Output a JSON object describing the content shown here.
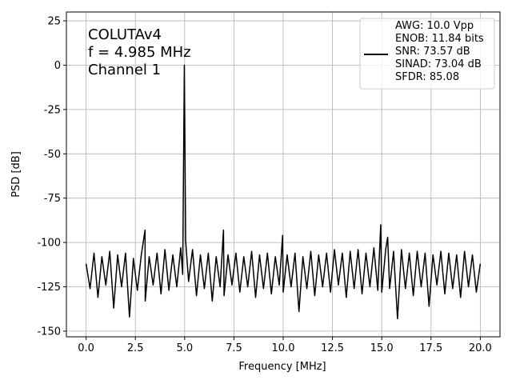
{
  "chart_data": {
    "type": "line",
    "xlabel": "Frequency [MHz]",
    "ylabel": "PSD [dB]",
    "annotations": [
      "COLUTAv4",
      "f = 4.985 MHz",
      "Channel 1"
    ],
    "xlim": [
      -1,
      21
    ],
    "ylim": [
      -153.2,
      30
    ],
    "xticks": [
      {
        "value": 0,
        "label": "0.0"
      },
      2.5,
      {
        "value": 5,
        "label": "5.0"
      },
      7.5,
      {
        "value": 10,
        "label": "10.0"
      },
      12.5,
      {
        "value": 15,
        "label": "15.0"
      },
      17.5,
      {
        "value": 20,
        "label": "20.0"
      }
    ],
    "yticks": [
      25,
      0,
      -25,
      -50,
      -75,
      -100,
      -125,
      -150
    ],
    "grid": true,
    "x": [
      0,
      0.2,
      0.4,
      0.6,
      0.8,
      1.0,
      1.2,
      1.4,
      1.6,
      1.8,
      2.0,
      2.2,
      2.4,
      2.6,
      2.8,
      2.99,
      3.0,
      3.2,
      3.4,
      3.6,
      3.8,
      4.0,
      4.2,
      4.4,
      4.6,
      4.8,
      4.9,
      4.985,
      5.05,
      5.2,
      5.4,
      5.6,
      5.8,
      6.0,
      6.2,
      6.4,
      6.6,
      6.8,
      6.97,
      7.0,
      7.2,
      7.4,
      7.6,
      7.8,
      8.0,
      8.2,
      8.4,
      8.6,
      8.8,
      9.0,
      9.2,
      9.4,
      9.6,
      9.8,
      9.97,
      10.0,
      10.2,
      10.4,
      10.6,
      10.8,
      11.0,
      11.2,
      11.4,
      11.6,
      11.8,
      12.0,
      12.2,
      12.4,
      12.6,
      12.8,
      13.0,
      13.2,
      13.4,
      13.6,
      13.8,
      14.0,
      14.2,
      14.4,
      14.6,
      14.8,
      14.95,
      15.0,
      15.2,
      15.3,
      15.4,
      15.6,
      15.8,
      16.0,
      16.2,
      16.4,
      16.6,
      16.8,
      17.0,
      17.2,
      17.4,
      17.6,
      17.8,
      18.0,
      18.2,
      18.4,
      18.6,
      18.8,
      19.0,
      19.2,
      19.4,
      19.6,
      19.8,
      20.0
    ],
    "series": [
      {
        "name": "AWG: 10.0 Vpp\nENOB: 11.84 bits\nSNR: 73.57 dB\nSINAD: 73.04 dB\nSFDR: 85.08",
        "color": "#000000",
        "values": [
          -112,
          -126,
          -106,
          -131,
          -108,
          -124,
          -105,
          -137,
          -107,
          -125,
          -106,
          -142,
          -109,
          -127,
          -107,
          -93,
          -133,
          -108,
          -124,
          -106,
          -129,
          -104,
          -127,
          -107,
          -125,
          -103,
          -118,
          0,
          -99,
          -122,
          -104,
          -130,
          -107,
          -126,
          -106,
          -133,
          -108,
          -125,
          -93,
          -130,
          -107,
          -124,
          -106,
          -128,
          -108,
          -125,
          -105,
          -131,
          -107,
          -126,
          -106,
          -129,
          -108,
          -124,
          -96,
          -128,
          -107,
          -125,
          -106,
          -139,
          -108,
          -126,
          -105,
          -130,
          -107,
          -125,
          -106,
          -128,
          -104,
          -124,
          -106,
          -131,
          -105,
          -126,
          -104,
          -129,
          -106,
          -125,
          -103,
          -127,
          -90,
          -128,
          -104,
          -97,
          -126,
          -105,
          -143,
          -104,
          -126,
          -106,
          -130,
          -105,
          -125,
          -106,
          -136,
          -107,
          -124,
          -105,
          -129,
          -106,
          -126,
          -107,
          -131,
          -105,
          -125,
          -107,
          -128,
          -112
        ]
      }
    ]
  }
}
